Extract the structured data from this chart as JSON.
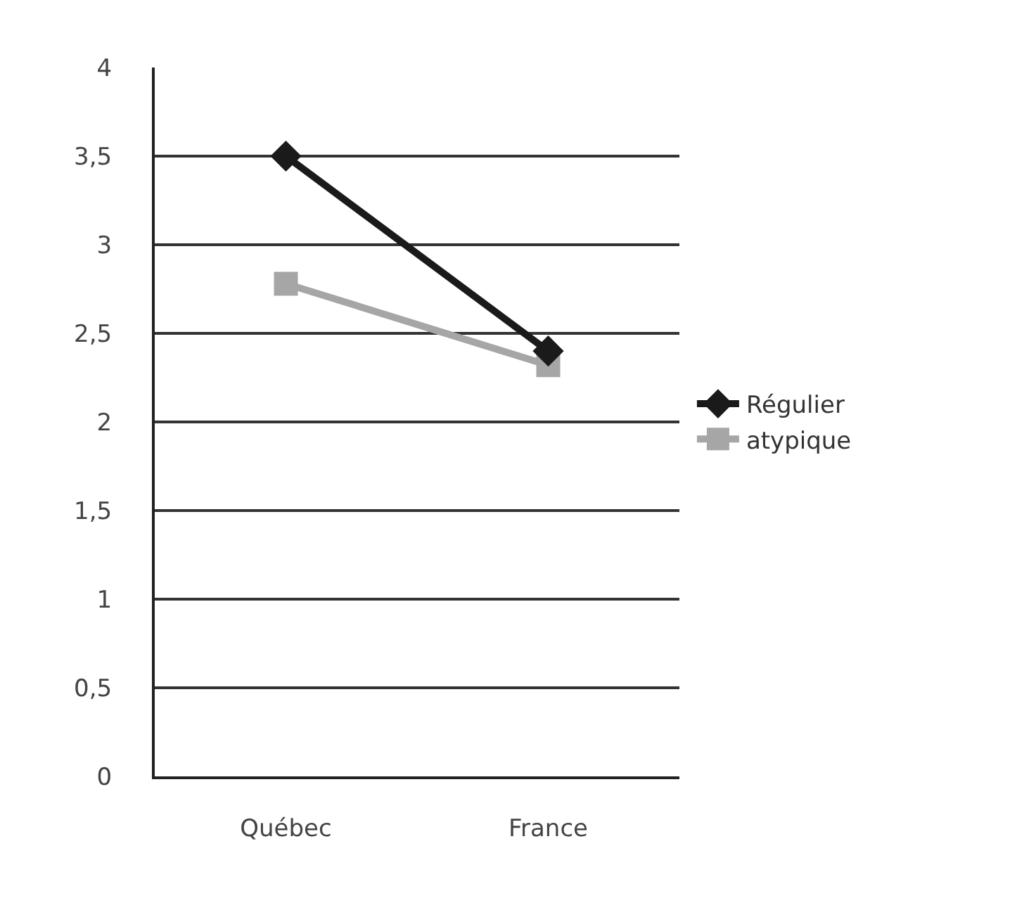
{
  "chart_data": {
    "type": "line",
    "categories": [
      "Québec",
      "France"
    ],
    "series": [
      {
        "name": "Régulier",
        "color": "#1a1a1a",
        "values": [
          3.5,
          2.4
        ],
        "marker": "diamond"
      },
      {
        "name": "atypique",
        "color": "#a6a6a6",
        "values": [
          2.78,
          2.32
        ],
        "marker": "square"
      }
    ],
    "ylim": [
      0,
      4
    ],
    "yticks": [
      0,
      {
        "value": 0.5,
        "label": "0,5"
      },
      1,
      {
        "value": 1.5,
        "label": "1,5"
      },
      2,
      {
        "value": 2.5,
        "label": "2,5"
      },
      3,
      {
        "value": 3.5,
        "label": "3,5"
      },
      4
    ],
    "grid": "y",
    "legend": "right",
    "line_style": "solid"
  }
}
